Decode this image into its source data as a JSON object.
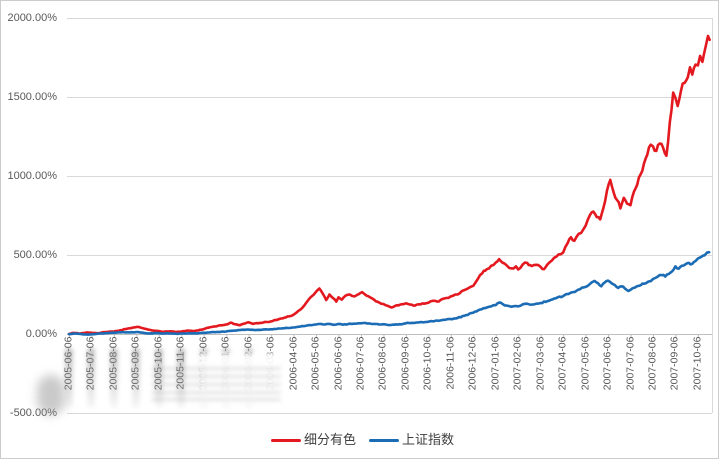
{
  "chart_data": {
    "type": "line",
    "title": "",
    "x_axis": {
      "labels": [
        "2005-06-06",
        "2005-07-06",
        "2005-08-06",
        "2005-09-06",
        "2005-10-06",
        "2005-11-06",
        "2005-12-06",
        "2006-01-06",
        "2006-02-06",
        "2006-03-06",
        "2006-04-06",
        "2006-05-06",
        "2006-06-06",
        "2006-07-06",
        "2006-08-06",
        "2006-09-06",
        "2006-10-06",
        "2006-11-06",
        "2006-12-06",
        "2007-01-06",
        "2007-02-06",
        "2007-03-06",
        "2007-04-06",
        "2007-05-06",
        "2007-06-06",
        "2007-07-06",
        "2007-08-06",
        "2007-09-06",
        "2007-10-06"
      ],
      "tick_interval": "1 month",
      "label_rotation_deg": -90
    },
    "y_axis": {
      "labels": [
        "2000.00%",
        "1500.00%",
        "1000.00%",
        "500.00%",
        "0.00%",
        "-500.00%"
      ],
      "values": [
        2000,
        1500,
        1000,
        500,
        0,
        -500
      ],
      "min": -500,
      "max": 2000,
      "unit": "%"
    },
    "legend": {
      "position": "bottom",
      "entries": [
        {
          "label": "细分有色",
          "color": "#e3191f"
        },
        {
          "label": "上证指数",
          "color": "#1b6cb5"
        }
      ]
    },
    "grid": true,
    "x_unit": "months since 2005-06-06 (x-axis label index)",
    "series": [
      {
        "name": "细分有色",
        "color": "#e3191f",
        "points": [
          [
            0,
            0
          ],
          [
            0.2,
            7
          ],
          [
            0.5,
            3
          ],
          [
            0.8,
            10
          ],
          [
            1,
            8
          ],
          [
            1.3,
            5
          ],
          [
            1.6,
            12
          ],
          [
            2,
            16
          ],
          [
            2.3,
            24
          ],
          [
            2.6,
            34
          ],
          [
            2.9,
            42
          ],
          [
            3.1,
            45
          ],
          [
            3.3,
            36
          ],
          [
            3.6,
            26
          ],
          [
            3.9,
            20
          ],
          [
            4.2,
            14
          ],
          [
            4.5,
            17
          ],
          [
            4.8,
            13
          ],
          [
            5,
            15
          ],
          [
            5.3,
            22
          ],
          [
            5.6,
            19
          ],
          [
            5.9,
            27
          ],
          [
            6.2,
            40
          ],
          [
            6.5,
            48
          ],
          [
            6.8,
            55
          ],
          [
            7,
            60
          ],
          [
            7.2,
            72
          ],
          [
            7.4,
            62
          ],
          [
            7.6,
            55
          ],
          [
            7.8,
            66
          ],
          [
            8,
            74
          ],
          [
            8.2,
            64
          ],
          [
            8.5,
            70
          ],
          [
            8.8,
            76
          ],
          [
            9,
            80
          ],
          [
            9.3,
            92
          ],
          [
            9.6,
            104
          ],
          [
            9.8,
            112
          ],
          [
            10,
            122
          ],
          [
            10.2,
            145
          ],
          [
            10.4,
            168
          ],
          [
            10.6,
            205
          ],
          [
            10.8,
            238
          ],
          [
            11,
            268
          ],
          [
            11.15,
            288
          ],
          [
            11.3,
            255
          ],
          [
            11.45,
            215
          ],
          [
            11.6,
            250
          ],
          [
            11.75,
            228
          ],
          [
            11.9,
            205
          ],
          [
            12,
            232
          ],
          [
            12.15,
            218
          ],
          [
            12.3,
            242
          ],
          [
            12.5,
            250
          ],
          [
            12.7,
            238
          ],
          [
            12.9,
            252
          ],
          [
            13.05,
            265
          ],
          [
            13.2,
            248
          ],
          [
            13.4,
            232
          ],
          [
            13.6,
            215
          ],
          [
            13.8,
            200
          ],
          [
            14,
            190
          ],
          [
            14.2,
            178
          ],
          [
            14.35,
            168
          ],
          [
            14.6,
            182
          ],
          [
            14.8,
            188
          ],
          [
            15,
            194
          ],
          [
            15.2,
            186
          ],
          [
            15.4,
            180
          ],
          [
            15.6,
            188
          ],
          [
            15.8,
            192
          ],
          [
            16,
            198
          ],
          [
            16.2,
            210
          ],
          [
            16.4,
            205
          ],
          [
            16.6,
            220
          ],
          [
            16.8,
            228
          ],
          [
            17,
            238
          ],
          [
            17.2,
            250
          ],
          [
            17.4,
            258
          ],
          [
            17.6,
            278
          ],
          [
            17.8,
            292
          ],
          [
            18,
            305
          ],
          [
            18.2,
            348
          ],
          [
            18.4,
            385
          ],
          [
            18.6,
            410
          ],
          [
            18.8,
            432
          ],
          [
            19,
            452
          ],
          [
            19.15,
            474
          ],
          [
            19.3,
            452
          ],
          [
            19.5,
            432
          ],
          [
            19.7,
            415
          ],
          [
            19.9,
            428
          ],
          [
            20,
            408
          ],
          [
            20.2,
            440
          ],
          [
            20.4,
            450
          ],
          [
            20.6,
            430
          ],
          [
            20.8,
            438
          ],
          [
            21,
            425
          ],
          [
            21.15,
            410
          ],
          [
            21.3,
            440
          ],
          [
            21.5,
            465
          ],
          [
            21.7,
            490
          ],
          [
            21.9,
            505
          ],
          [
            22,
            515
          ],
          [
            22.2,
            575
          ],
          [
            22.35,
            612
          ],
          [
            22.5,
            590
          ],
          [
            22.7,
            635
          ],
          [
            22.9,
            662
          ],
          [
            23,
            685
          ],
          [
            23.2,
            755
          ],
          [
            23.35,
            775
          ],
          [
            23.5,
            740
          ],
          [
            23.65,
            725
          ],
          [
            23.8,
            800
          ],
          [
            23.95,
            905
          ],
          [
            24.1,
            975
          ],
          [
            24.25,
            895
          ],
          [
            24.4,
            848
          ],
          [
            24.55,
            795
          ],
          [
            24.7,
            862
          ],
          [
            24.85,
            825
          ],
          [
            25,
            815
          ],
          [
            25.15,
            900
          ],
          [
            25.3,
            945
          ],
          [
            25.45,
            1010
          ],
          [
            25.6,
            1080
          ],
          [
            25.75,
            1135
          ],
          [
            25.9,
            1198
          ],
          [
            26,
            1188
          ],
          [
            26.15,
            1158
          ],
          [
            26.3,
            1205
          ],
          [
            26.45,
            1180
          ],
          [
            26.6,
            1128
          ],
          [
            26.75,
            1340
          ],
          [
            26.9,
            1528
          ],
          [
            27,
            1495
          ],
          [
            27.1,
            1443
          ],
          [
            27.25,
            1540
          ],
          [
            27.4,
            1588
          ],
          [
            27.55,
            1625
          ],
          [
            27.65,
            1688
          ],
          [
            27.75,
            1642
          ],
          [
            27.9,
            1705
          ],
          [
            28,
            1700
          ],
          [
            28.1,
            1760
          ],
          [
            28.2,
            1722
          ],
          [
            28.35,
            1820
          ],
          [
            28.45,
            1886
          ],
          [
            28.52,
            1862
          ]
        ]
      },
      {
        "name": "上证指数",
        "color": "#1b6cb5",
        "points": [
          [
            0,
            0
          ],
          [
            0.3,
            3
          ],
          [
            0.6,
            -2
          ],
          [
            0.9,
            -4
          ],
          [
            1.2,
            0
          ],
          [
            1.5,
            4
          ],
          [
            1.8,
            7
          ],
          [
            2.1,
            9
          ],
          [
            2.4,
            12
          ],
          [
            2.7,
            10
          ],
          [
            3,
            12
          ],
          [
            3.3,
            8
          ],
          [
            3.6,
            4
          ],
          [
            3.9,
            6
          ],
          [
            4.2,
            3
          ],
          [
            4.5,
            4
          ],
          [
            4.8,
            1
          ],
          [
            5.1,
            3
          ],
          [
            5.4,
            5
          ],
          [
            5.7,
            4
          ],
          [
            6,
            8
          ],
          [
            6.3,
            11
          ],
          [
            6.6,
            13
          ],
          [
            7,
            16
          ],
          [
            7.3,
            21
          ],
          [
            7.6,
            25
          ],
          [
            8,
            28
          ],
          [
            8.3,
            25
          ],
          [
            8.6,
            27
          ],
          [
            9,
            30
          ],
          [
            9.3,
            34
          ],
          [
            9.6,
            37
          ],
          [
            10,
            41
          ],
          [
            10.3,
            47
          ],
          [
            10.6,
            54
          ],
          [
            11,
            60
          ],
          [
            11.2,
            64
          ],
          [
            11.4,
            60
          ],
          [
            11.6,
            64
          ],
          [
            11.8,
            58
          ],
          [
            12,
            64
          ],
          [
            12.2,
            59
          ],
          [
            12.4,
            62
          ],
          [
            12.6,
            64
          ],
          [
            12.8,
            66
          ],
          [
            13,
            68
          ],
          [
            13.2,
            70
          ],
          [
            13.4,
            66
          ],
          [
            13.6,
            64
          ],
          [
            13.8,
            60
          ],
          [
            14,
            62
          ],
          [
            14.2,
            57
          ],
          [
            14.5,
            59
          ],
          [
            14.8,
            61
          ],
          [
            15,
            68
          ],
          [
            15.3,
            71
          ],
          [
            15.6,
            74
          ],
          [
            16,
            78
          ],
          [
            16.3,
            83
          ],
          [
            16.6,
            88
          ],
          [
            17,
            94
          ],
          [
            17.3,
            102
          ],
          [
            17.6,
            115
          ],
          [
            18,
            135
          ],
          [
            18.3,
            155
          ],
          [
            18.6,
            168
          ],
          [
            18.8,
            175
          ],
          [
            19,
            182
          ],
          [
            19.15,
            199
          ],
          [
            19.3,
            190
          ],
          [
            19.5,
            180
          ],
          [
            19.7,
            172
          ],
          [
            19.9,
            177
          ],
          [
            20,
            175
          ],
          [
            20.2,
            188
          ],
          [
            20.4,
            192
          ],
          [
            20.6,
            186
          ],
          [
            20.8,
            192
          ],
          [
            21,
            196
          ],
          [
            21.3,
            208
          ],
          [
            21.6,
            224
          ],
          [
            22,
            240
          ],
          [
            22.3,
            258
          ],
          [
            22.6,
            274
          ],
          [
            23,
            298
          ],
          [
            23.2,
            318
          ],
          [
            23.4,
            336
          ],
          [
            23.55,
            322
          ],
          [
            23.7,
            302
          ],
          [
            23.85,
            326
          ],
          [
            24,
            338
          ],
          [
            24.15,
            322
          ],
          [
            24.3,
            310
          ],
          [
            24.45,
            292
          ],
          [
            24.6,
            302
          ],
          [
            24.75,
            288
          ],
          [
            24.9,
            272
          ],
          [
            25,
            280
          ],
          [
            25.2,
            294
          ],
          [
            25.4,
            306
          ],
          [
            25.6,
            318
          ],
          [
            25.8,
            332
          ],
          [
            26,
            348
          ],
          [
            26.2,
            362
          ],
          [
            26.4,
            372
          ],
          [
            26.55,
            364
          ],
          [
            26.7,
            380
          ],
          [
            26.85,
            396
          ],
          [
            27,
            428
          ],
          [
            27.15,
            414
          ],
          [
            27.3,
            432
          ],
          [
            27.45,
            442
          ],
          [
            27.6,
            450
          ],
          [
            27.75,
            444
          ],
          [
            27.9,
            462
          ],
          [
            28,
            478
          ],
          [
            28.15,
            488
          ],
          [
            28.3,
            498
          ],
          [
            28.5,
            518
          ]
        ]
      }
    ]
  },
  "colors": {
    "background": "#ffffff",
    "frame_border": "#cccccc",
    "gridline": "#d9d9d9",
    "axis_line": "#bfbfbf",
    "axis_text": "#595959",
    "legend_text": "#3f3f3f",
    "series_red": "#e3191f",
    "series_blue": "#1b6cb5"
  }
}
